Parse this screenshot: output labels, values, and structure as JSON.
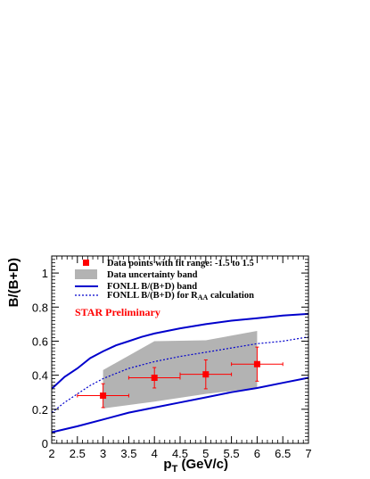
{
  "chart_data": {
    "type": "scatter",
    "title": "",
    "xlabel_main": "p",
    "xlabel_sub": "T",
    "xlabel_unit": " (GeV/c)",
    "ylabel": "B/(B+D)",
    "xlim": [
      2,
      7
    ],
    "ylim": [
      0,
      1.1
    ],
    "x_ticks": [
      "2",
      "2.5",
      "3",
      "3.5",
      "4",
      "4.5",
      "5",
      "5.5",
      "6",
      "6.5",
      "7"
    ],
    "y_ticks": [
      "0",
      "0.2",
      "0.4",
      "0.6",
      "0.8",
      "1"
    ],
    "grid": false,
    "legend_position": "top-left",
    "annotation": "STAR Preliminary",
    "legend": {
      "points": "Data points with fit range: -1.5 to 1.5",
      "band": "Data uncertainty band",
      "fonll_band": "FONLL B/(B+D) band",
      "fonll_raa_main": "FONLL B/(B+D) for R",
      "fonll_raa_sub": "AA",
      "fonll_raa_end": " calculation"
    },
    "data_points": [
      {
        "x": 3.0,
        "y": 0.28,
        "xerr": 0.5,
        "yerr": 0.07
      },
      {
        "x": 4.0,
        "y": 0.385,
        "xerr": 0.5,
        "yerr": 0.06
      },
      {
        "x": 5.0,
        "y": 0.405,
        "xerr": 0.5,
        "yerr": 0.085
      },
      {
        "x": 6.0,
        "y": 0.465,
        "xerr": 0.5,
        "yerr": 0.1
      }
    ],
    "uncertainty_band": {
      "upper": [
        [
          3.0,
          0.43
        ],
        [
          4.0,
          0.6
        ],
        [
          5.0,
          0.605
        ],
        [
          6.0,
          0.66
        ]
      ],
      "lower": [
        [
          3.0,
          0.205
        ],
        [
          4.0,
          0.245
        ],
        [
          5.0,
          0.29
        ],
        [
          6.0,
          0.325
        ]
      ]
    },
    "fonll_upper": [
      [
        2.0,
        0.32
      ],
      [
        2.25,
        0.39
      ],
      [
        2.5,
        0.44
      ],
      [
        2.75,
        0.5
      ],
      [
        3.0,
        0.54
      ],
      [
        3.25,
        0.575
      ],
      [
        3.5,
        0.6
      ],
      [
        3.75,
        0.625
      ],
      [
        4.0,
        0.645
      ],
      [
        4.5,
        0.675
      ],
      [
        5.0,
        0.7
      ],
      [
        5.5,
        0.72
      ],
      [
        6.0,
        0.735
      ],
      [
        6.5,
        0.75
      ],
      [
        7.0,
        0.76
      ]
    ],
    "fonll_lower": [
      [
        2.0,
        0.065
      ],
      [
        2.5,
        0.1
      ],
      [
        3.0,
        0.14
      ],
      [
        3.5,
        0.18
      ],
      [
        4.0,
        0.21
      ],
      [
        4.5,
        0.24
      ],
      [
        5.0,
        0.27
      ],
      [
        5.5,
        0.3
      ],
      [
        6.0,
        0.325
      ],
      [
        6.5,
        0.355
      ],
      [
        7.0,
        0.385
      ]
    ],
    "fonll_raa": [
      [
        2.0,
        0.18
      ],
      [
        2.25,
        0.24
      ],
      [
        2.5,
        0.29
      ],
      [
        2.75,
        0.34
      ],
      [
        3.0,
        0.38
      ],
      [
        3.25,
        0.41
      ],
      [
        3.5,
        0.44
      ],
      [
        3.75,
        0.46
      ],
      [
        4.0,
        0.48
      ],
      [
        4.5,
        0.51
      ],
      [
        5.0,
        0.535
      ],
      [
        5.5,
        0.56
      ],
      [
        6.0,
        0.585
      ],
      [
        6.5,
        0.6
      ],
      [
        7.0,
        0.625
      ]
    ],
    "colors": {
      "points": "#ff0000",
      "band": "#b3b3b3",
      "fonll": "#0000cc",
      "annotation": "#ff0000"
    }
  }
}
